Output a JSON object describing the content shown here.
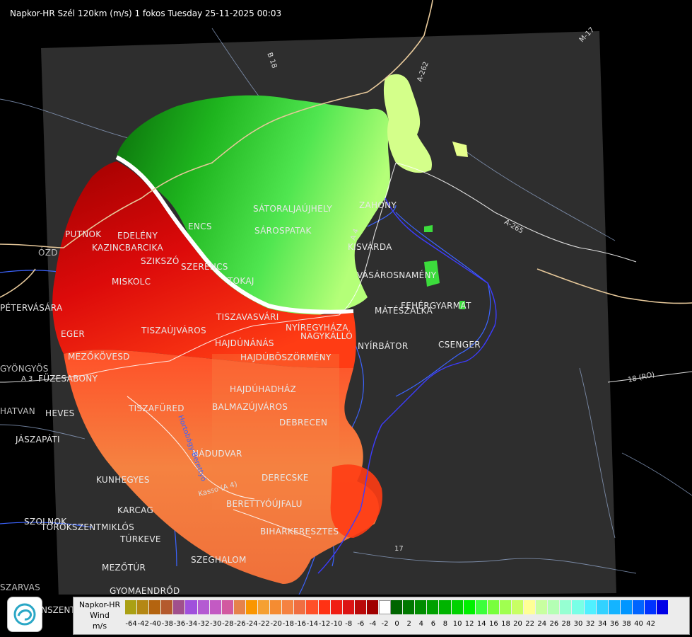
{
  "header": {
    "title": "Napkor-HR Szél 120km (m/s) 1 fokos Tuesday 25-11-2025 00:03"
  },
  "places": [
    {
      "name": "PUTNOK"
    },
    {
      "name": "EDELÉNY"
    },
    {
      "name": "KAZINCBARCIKA"
    },
    {
      "name": "ÓZD"
    },
    {
      "name": "SZIKSZÓ"
    },
    {
      "name": "SZERENCS"
    },
    {
      "name": "MISKOLC"
    },
    {
      "name": "TOKAJ"
    },
    {
      "name": "ENCS"
    },
    {
      "name": "SÁTORALJAÚJHELY"
    },
    {
      "name": "SÁROSPATAK"
    },
    {
      "name": "ZAHONY"
    },
    {
      "name": "KISVÁRDA"
    },
    {
      "name": "VÁSÁROSNAMÉNY"
    },
    {
      "name": "MÁTÉSZALKA"
    },
    {
      "name": "FEHÉRGYARMAT"
    },
    {
      "name": "CSENGER"
    },
    {
      "name": "NYÍRBÁTOR"
    },
    {
      "name": "PÉTERVÁSÁRA"
    },
    {
      "name": "EGER"
    },
    {
      "name": "TISZAÚJVÁROS"
    },
    {
      "name": "TISZAVASVÁRI"
    },
    {
      "name": "NYÍREGYHÁZA"
    },
    {
      "name": "NAGYKÁLLÓ"
    },
    {
      "name": "HAJDÚNÁNÁS"
    },
    {
      "name": "HAJDÚBÖSZÖRMÉNY"
    },
    {
      "name": "MEZŐKÖVESD"
    },
    {
      "name": "TISZAFÜRED"
    },
    {
      "name": "GYÖNGYÖS"
    },
    {
      "name": "FÜZESABONY"
    },
    {
      "name": "HAJDÚHADHÁZ"
    },
    {
      "name": "BALMAZÚJVÁROS"
    },
    {
      "name": "DEBRECEN"
    },
    {
      "name": "HEVES"
    },
    {
      "name": "HATVAN"
    },
    {
      "name": "JÁSZAPÁTI"
    },
    {
      "name": "NÁDUDVAR"
    },
    {
      "name": "KUNHEGYES"
    },
    {
      "name": "DERECSKE"
    },
    {
      "name": "KARCAG"
    },
    {
      "name": "BERETTYÓÚJFALU"
    },
    {
      "name": "BIHARKERESZTES"
    },
    {
      "name": "SZOLNOK"
    },
    {
      "name": "TÖRÖKSZENTMIKLÓS"
    },
    {
      "name": "TÚRKEVE"
    },
    {
      "name": "SZEGHALOM"
    },
    {
      "name": "MEZŐTÚR"
    },
    {
      "name": "GYOMAENDRŐD"
    },
    {
      "name": "SZARVAS"
    }
  ],
  "roads": [
    {
      "name": "B 18"
    },
    {
      "name": "A-262"
    },
    {
      "name": "M-17"
    },
    {
      "name": "A-265"
    },
    {
      "name": "18 (RO)"
    },
    {
      "name": "A 3"
    },
    {
      "name": "A 4"
    },
    {
      "name": "17"
    },
    {
      "name": "Hortobágy-Berettyó"
    },
    {
      "name": "Kasso (A 4)"
    }
  ],
  "legend": {
    "line1": "Napkor-HR",
    "line2": "Wind",
    "line3": "m/s",
    "left_clip": "NSZENT",
    "colors": [
      "#aaa014",
      "#b48714",
      "#b4640f",
      "#b45a2d",
      "#a0508c",
      "#a050dc",
      "#b45ad2",
      "#c35ac3",
      "#d25aa0",
      "#e6824b",
      "#fa9600",
      "#f5a032",
      "#f58c32",
      "#f58241",
      "#f06e41",
      "#ff5028",
      "#ff3214",
      "#f01e14",
      "#dc1414",
      "#b90a0a",
      "#a00000",
      "#ffffff",
      "#006400",
      "#007800",
      "#008c00",
      "#00a000",
      "#00b400",
      "#00d200",
      "#00f000",
      "#3cff3c",
      "#78ff3c",
      "#a0ff50",
      "#c8ff64",
      "#ffff96",
      "#c8ffa0",
      "#b4ffb4",
      "#96ffd2",
      "#78ffe6",
      "#50f0ff",
      "#32d2ff",
      "#14b4ff",
      "#0096ff",
      "#0064ff",
      "#0032ff",
      "#0000e6"
    ],
    "ticks": [
      "-64",
      "-42",
      "-40",
      "-38",
      "-36",
      "-34",
      "-32",
      "-30",
      "-28",
      "-26",
      "-24",
      "-22",
      "-20",
      "-18",
      "-16",
      "-14",
      "-12",
      "-10",
      "-8",
      "-6",
      "-4",
      "-2",
      "0",
      "2",
      "4",
      "6",
      "8",
      "10",
      "12",
      "14",
      "16",
      "18",
      "20",
      "22",
      "24",
      "26",
      "28",
      "30",
      "32",
      "34",
      "36",
      "38",
      "40",
      "42"
    ]
  }
}
